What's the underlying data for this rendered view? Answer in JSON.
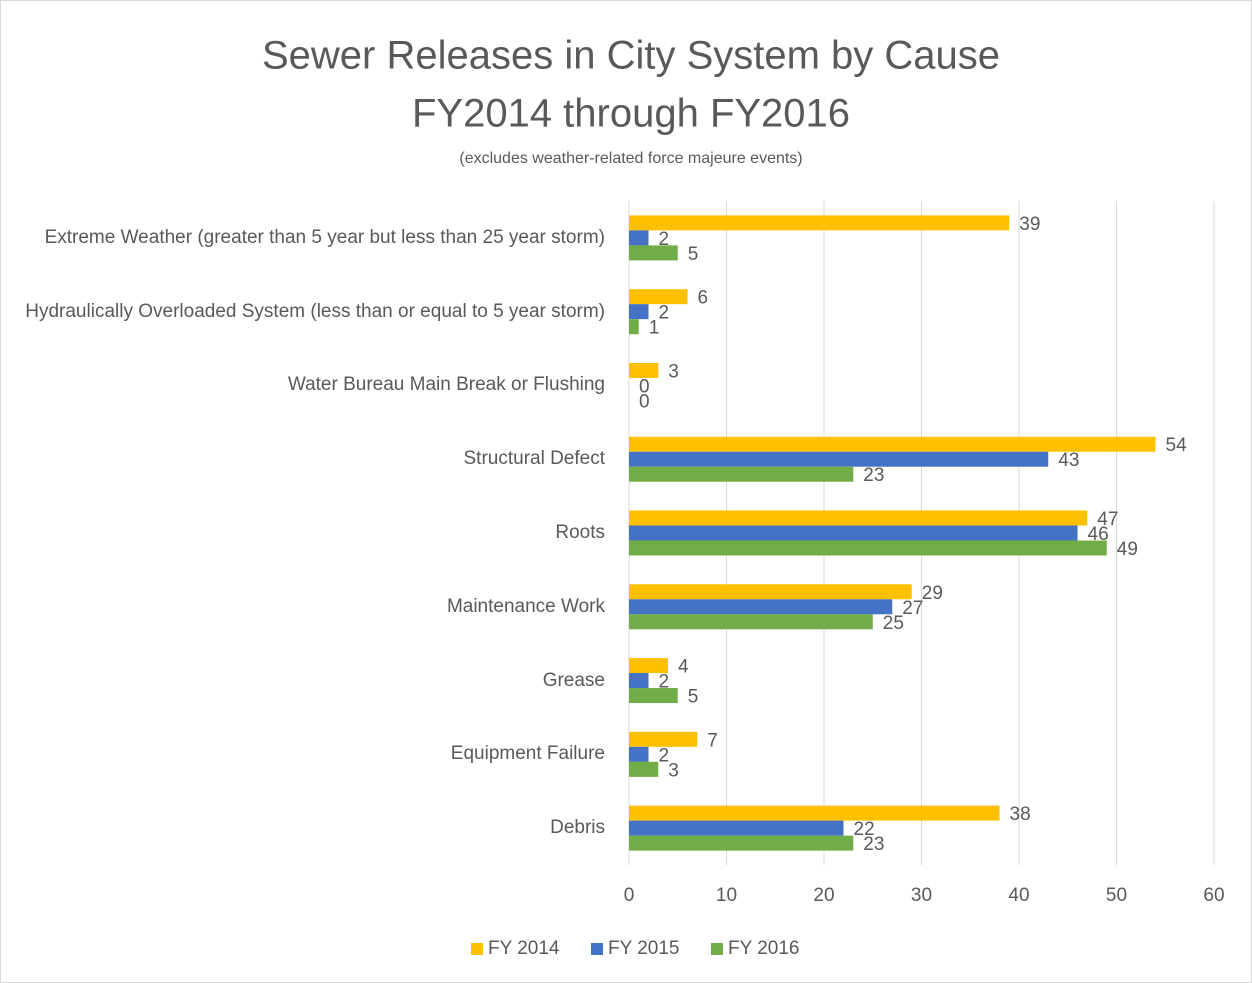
{
  "chart_data": {
    "type": "bar",
    "orientation": "horizontal",
    "title": "Sewer Releases in City System by Cause",
    "subtitle_line": "FY2014 through FY2016",
    "note": "(excludes weather-related force majeure events)",
    "categories": [
      "Extreme Weather (greater than 5 year but less than 25 year storm)",
      "Hydraulically Overloaded System (less than or equal to 5 year storm)",
      "Water Bureau Main Break or Flushing",
      "Structural Defect",
      "Roots",
      "Maintenance Work",
      "Grease",
      "Equipment Failure",
      "Debris"
    ],
    "series": [
      {
        "name": "FY 2014",
        "color": "#FFC000",
        "values": [
          39,
          6,
          3,
          54,
          47,
          29,
          4,
          7,
          38
        ]
      },
      {
        "name": "FY 2015",
        "color": "#4472C4",
        "values": [
          2,
          2,
          0,
          43,
          46,
          27,
          2,
          2,
          22
        ]
      },
      {
        "name": "FY 2016",
        "color": "#70AD47",
        "values": [
          5,
          1,
          0,
          23,
          49,
          25,
          5,
          3,
          23
        ]
      }
    ],
    "xlim": [
      0,
      60
    ],
    "xticks": [
      0,
      10,
      20,
      30,
      40,
      50,
      60
    ],
    "grid": true,
    "legend": "bottom"
  }
}
